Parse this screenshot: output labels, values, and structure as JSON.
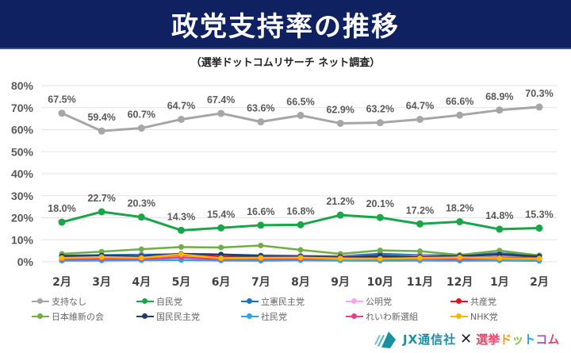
{
  "header": {
    "title": "政党支持率の推移",
    "subtitle": "（選挙ドットコムリサーチ ネット調査）"
  },
  "chart_data": {
    "type": "line",
    "title": "政党支持率の推移",
    "subtitle": "（選挙ドットコムリサーチ ネット調査）",
    "xlabel": "",
    "ylabel": "",
    "ylim": [
      0,
      80
    ],
    "yticks": [
      "0%",
      "10%",
      "20%",
      "30%",
      "40%",
      "50%",
      "60%",
      "70%",
      "80%"
    ],
    "grid": true,
    "legend_position": "bottom",
    "categories": [
      "2月",
      "3月",
      "4月",
      "5月",
      "6月",
      "7月",
      "8月",
      "9月",
      "10月",
      "11月",
      "12月",
      "1月",
      "2月"
    ],
    "series": [
      {
        "name": "支持なし",
        "color": "#a6a6a6",
        "labeled": true,
        "values": [
          67.5,
          59.4,
          60.7,
          64.7,
          67.4,
          63.6,
          66.5,
          62.9,
          63.2,
          64.7,
          66.6,
          68.9,
          70.3
        ]
      },
      {
        "name": "自民党",
        "color": "#1aa54b",
        "labeled": true,
        "values": [
          18.0,
          22.7,
          20.3,
          14.3,
          15.4,
          16.6,
          16.8,
          21.2,
          20.1,
          17.2,
          18.2,
          14.8,
          15.3
        ]
      },
      {
        "name": "立憲民主党",
        "color": "#1f6fbf",
        "labeled": false,
        "values": [
          2.8,
          3.0,
          3.2,
          3.4,
          3.3,
          2.9,
          2.8,
          2.6,
          3.6,
          3.0,
          2.9,
          3.9,
          2.9
        ]
      },
      {
        "name": "公明党",
        "color": "#f4a6e8",
        "labeled": false,
        "values": [
          2.0,
          2.3,
          2.9,
          2.4,
          2.5,
          2.8,
          2.9,
          2.7,
          2.5,
          2.6,
          2.4,
          2.5,
          2.3
        ]
      },
      {
        "name": "共産党",
        "color": "#e0141e",
        "labeled": false,
        "values": [
          2.2,
          2.4,
          2.2,
          3.2,
          2.2,
          2.3,
          2.4,
          2.1,
          2.0,
          2.3,
          2.0,
          1.8,
          2.0
        ]
      },
      {
        "name": "日本維新の会",
        "color": "#70ad47",
        "labeled": false,
        "values": [
          3.6,
          4.6,
          5.7,
          6.7,
          6.5,
          7.4,
          5.4,
          3.6,
          5.2,
          4.8,
          3.1,
          5.1,
          2.9
        ]
      },
      {
        "name": "国民民主党",
        "color": "#203a72",
        "labeled": false,
        "values": [
          2.5,
          2.8,
          2.6,
          3.6,
          3.3,
          2.7,
          2.5,
          2.2,
          2.6,
          2.2,
          2.6,
          3.3,
          2.5
        ]
      },
      {
        "name": "社民党",
        "color": "#2aa5e8",
        "labeled": false,
        "values": [
          0.5,
          0.6,
          0.7,
          0.8,
          0.6,
          0.5,
          0.7,
          0.6,
          0.5,
          0.6,
          0.5,
          0.6,
          0.4
        ]
      },
      {
        "name": "れいわ新選組",
        "color": "#e9408b",
        "labeled": false,
        "values": [
          1.2,
          1.4,
          1.3,
          2.0,
          1.1,
          1.3,
          1.4,
          1.6,
          1.2,
          1.5,
          1.3,
          1.5,
          1.4
        ]
      },
      {
        "name": "NHK党",
        "color": "#f5b800",
        "labeled": false,
        "values": [
          1.7,
          2.1,
          1.8,
          3.4,
          1.6,
          1.8,
          1.9,
          1.5,
          1.4,
          1.7,
          2.0,
          1.6,
          1.5
        ]
      }
    ]
  },
  "footer": {
    "brand1": "JX通信社",
    "times": "✕",
    "brand2_chars": [
      "選",
      "挙",
      "ド",
      "ッ",
      "ト",
      "コ",
      "ム"
    ]
  }
}
